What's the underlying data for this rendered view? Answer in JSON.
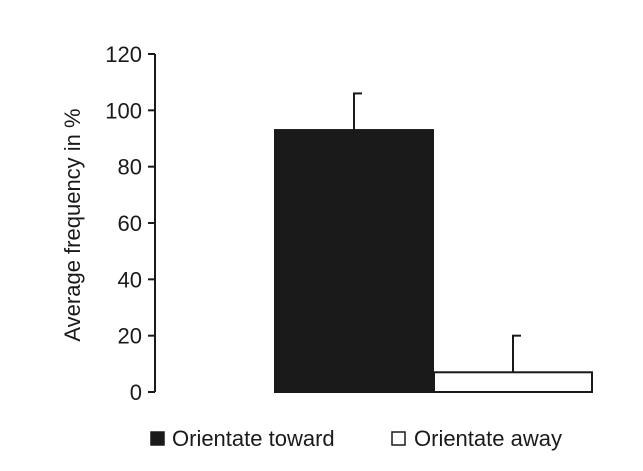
{
  "chart_data": {
    "type": "bar",
    "title": "",
    "xlabel": "",
    "ylabel": "Average frequency in %",
    "ylim": [
      0,
      120
    ],
    "yticks": [
      0,
      20,
      40,
      60,
      80,
      100,
      120
    ],
    "grid": false,
    "legend_position": "bottom",
    "categories": [
      "Orientate toward",
      "Orientate away"
    ],
    "series": [
      {
        "name": "Orientate toward",
        "value": 93,
        "error": 13,
        "fill": "#1a1a1a"
      },
      {
        "name": "Orientate away",
        "value": 7,
        "error": 13,
        "fill": "#ffffff"
      }
    ]
  }
}
